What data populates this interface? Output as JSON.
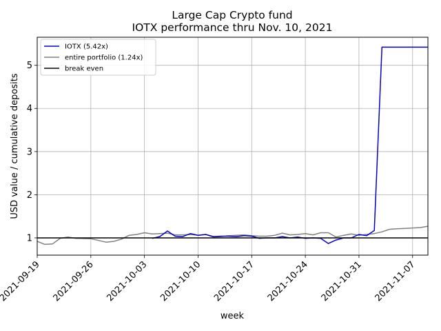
{
  "chart_data": {
    "type": "line",
    "title": "Large Cap Crypto fund",
    "subtitle": "IOTX performance thru Nov. 10, 2021",
    "xlabel": "week",
    "ylabel": "USD value / cumulative deposits",
    "x_ticks": [
      "2021-09-19",
      "2021-09-26",
      "2021-10-03",
      "2021-10-10",
      "2021-10-17",
      "2021-10-24",
      "2021-10-31",
      "2021-11-07"
    ],
    "y_ticks": [
      1,
      2,
      3,
      4,
      5
    ],
    "xlim": [
      "2021-09-19",
      "2021-11-09"
    ],
    "ylim": [
      0.6,
      5.65
    ],
    "grid": true,
    "legend_position": "top-left",
    "break_even": 1.0,
    "series": [
      {
        "name": "IOTX (5.42x)",
        "color": "#0000cc",
        "points": [
          [
            "2021-10-04",
            0.99
          ],
          [
            "2021-10-05",
            1.03
          ],
          [
            "2021-10-06",
            1.16
          ],
          [
            "2021-10-07",
            1.04
          ],
          [
            "2021-10-08",
            1.03
          ],
          [
            "2021-10-09",
            1.1
          ],
          [
            "2021-10-10",
            1.06
          ],
          [
            "2021-10-11",
            1.08
          ],
          [
            "2021-10-12",
            1.03
          ],
          [
            "2021-10-13",
            1.04
          ],
          [
            "2021-10-14",
            1.04
          ],
          [
            "2021-10-15",
            1.03
          ],
          [
            "2021-10-16",
            1.05
          ],
          [
            "2021-10-17",
            1.04
          ],
          [
            "2021-10-18",
            0.99
          ],
          [
            "2021-10-19",
            1.0
          ],
          [
            "2021-10-20",
            1.0
          ],
          [
            "2021-10-21",
            1.03
          ],
          [
            "2021-10-22",
            1.0
          ],
          [
            "2021-10-23",
            1.02
          ],
          [
            "2021-10-24",
            0.99
          ],
          [
            "2021-10-25",
            1.0
          ],
          [
            "2021-10-26",
            0.99
          ],
          [
            "2021-10-27",
            0.87
          ],
          [
            "2021-10-28",
            0.95
          ],
          [
            "2021-10-29",
            1.0
          ],
          [
            "2021-10-30",
            1.0
          ],
          [
            "2021-10-31",
            1.08
          ],
          [
            "2021-11-01",
            1.05
          ],
          [
            "2021-11-02",
            1.17
          ],
          [
            "2021-11-03",
            5.42
          ],
          [
            "2021-11-04",
            5.42
          ],
          [
            "2021-11-05",
            5.42
          ],
          [
            "2021-11-06",
            5.42
          ],
          [
            "2021-11-07",
            5.42
          ],
          [
            "2021-11-08",
            5.42
          ],
          [
            "2021-11-09",
            5.42
          ]
        ]
      },
      {
        "name": "entire portfolio (1.24x)",
        "color": "#808080",
        "points": [
          [
            "2021-09-19",
            0.92
          ],
          [
            "2021-09-20",
            0.85
          ],
          [
            "2021-09-21",
            0.86
          ],
          [
            "2021-09-22",
            0.99
          ],
          [
            "2021-09-23",
            1.02
          ],
          [
            "2021-09-24",
            0.99
          ],
          [
            "2021-09-26",
            0.98
          ],
          [
            "2021-09-28",
            0.9
          ],
          [
            "2021-09-29",
            0.92
          ],
          [
            "2021-09-30",
            0.97
          ],
          [
            "2021-10-01",
            1.06
          ],
          [
            "2021-10-02",
            1.08
          ],
          [
            "2021-10-03",
            1.12
          ],
          [
            "2021-10-04",
            1.09
          ],
          [
            "2021-10-05",
            1.1
          ],
          [
            "2021-10-06",
            1.11
          ],
          [
            "2021-10-07",
            1.07
          ],
          [
            "2021-10-08",
            1.07
          ],
          [
            "2021-10-09",
            1.08
          ],
          [
            "2021-10-10",
            1.06
          ],
          [
            "2021-10-11",
            1.08
          ],
          [
            "2021-10-12",
            1.02
          ],
          [
            "2021-10-13",
            1.03
          ],
          [
            "2021-10-14",
            1.05
          ],
          [
            "2021-10-15",
            1.06
          ],
          [
            "2021-10-16",
            1.07
          ],
          [
            "2021-10-17",
            1.05
          ],
          [
            "2021-10-18",
            1.04
          ],
          [
            "2021-10-19",
            1.04
          ],
          [
            "2021-10-20",
            1.06
          ],
          [
            "2021-10-21",
            1.11
          ],
          [
            "2021-10-22",
            1.07
          ],
          [
            "2021-10-23",
            1.08
          ],
          [
            "2021-10-24",
            1.1
          ],
          [
            "2021-10-25",
            1.07
          ],
          [
            "2021-10-26",
            1.12
          ],
          [
            "2021-10-27",
            1.12
          ],
          [
            "2021-10-28",
            1.02
          ],
          [
            "2021-10-29",
            1.06
          ],
          [
            "2021-10-30",
            1.09
          ],
          [
            "2021-10-31",
            1.06
          ],
          [
            "2021-11-01",
            1.08
          ],
          [
            "2021-11-02",
            1.1
          ],
          [
            "2021-11-03",
            1.14
          ],
          [
            "2021-11-04",
            1.2
          ],
          [
            "2021-11-05",
            1.21
          ],
          [
            "2021-11-06",
            1.22
          ],
          [
            "2021-11-07",
            1.23
          ],
          [
            "2021-11-08",
            1.24
          ],
          [
            "2021-11-09",
            1.27
          ],
          [
            "2021-11-10",
            1.3
          ],
          [
            "2021-11-11",
            1.24
          ]
        ]
      },
      {
        "name": "break even",
        "color": "#000000",
        "points": [
          [
            "2021-09-19",
            1.0
          ],
          [
            "2021-11-11",
            1.0
          ]
        ]
      }
    ]
  }
}
